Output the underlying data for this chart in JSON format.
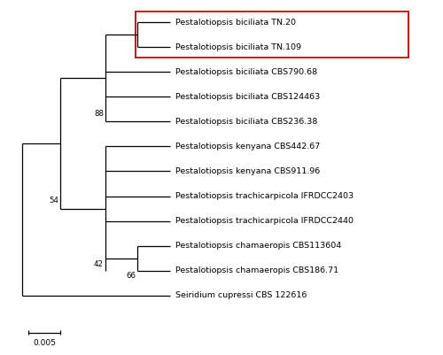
{
  "taxa": [
    "Pestalotiopsis biciliata TN.20",
    "Pestalotiopsis biciliata TN.109",
    "Pestalotiopsis biciliata CBS790.68",
    "Pestalotiopsis biciliata CBS124463",
    "Pestalotiopsis biciliata CBS236.38",
    "Pestalotiopsis kenyana CBS442.67",
    "Pestalotiopsis kenyana CBS911.96",
    "Pestalotiopsis trachicarpicola IFRDCC2403",
    "Pestalotiopsis trachicarpicola IFRDCC2440",
    "Pestalotiopsis chamaeropis CBS113604",
    "Pestalotiopsis chamaeropis CBS186.71",
    "Seiridium cupressi CBS 122616"
  ],
  "background_color": "#ffffff",
  "box_color": "#cc0000",
  "line_color": "#000000",
  "font_size": 6.8,
  "label_font_size": 6.2,
  "scale_bar_label": "0.005"
}
